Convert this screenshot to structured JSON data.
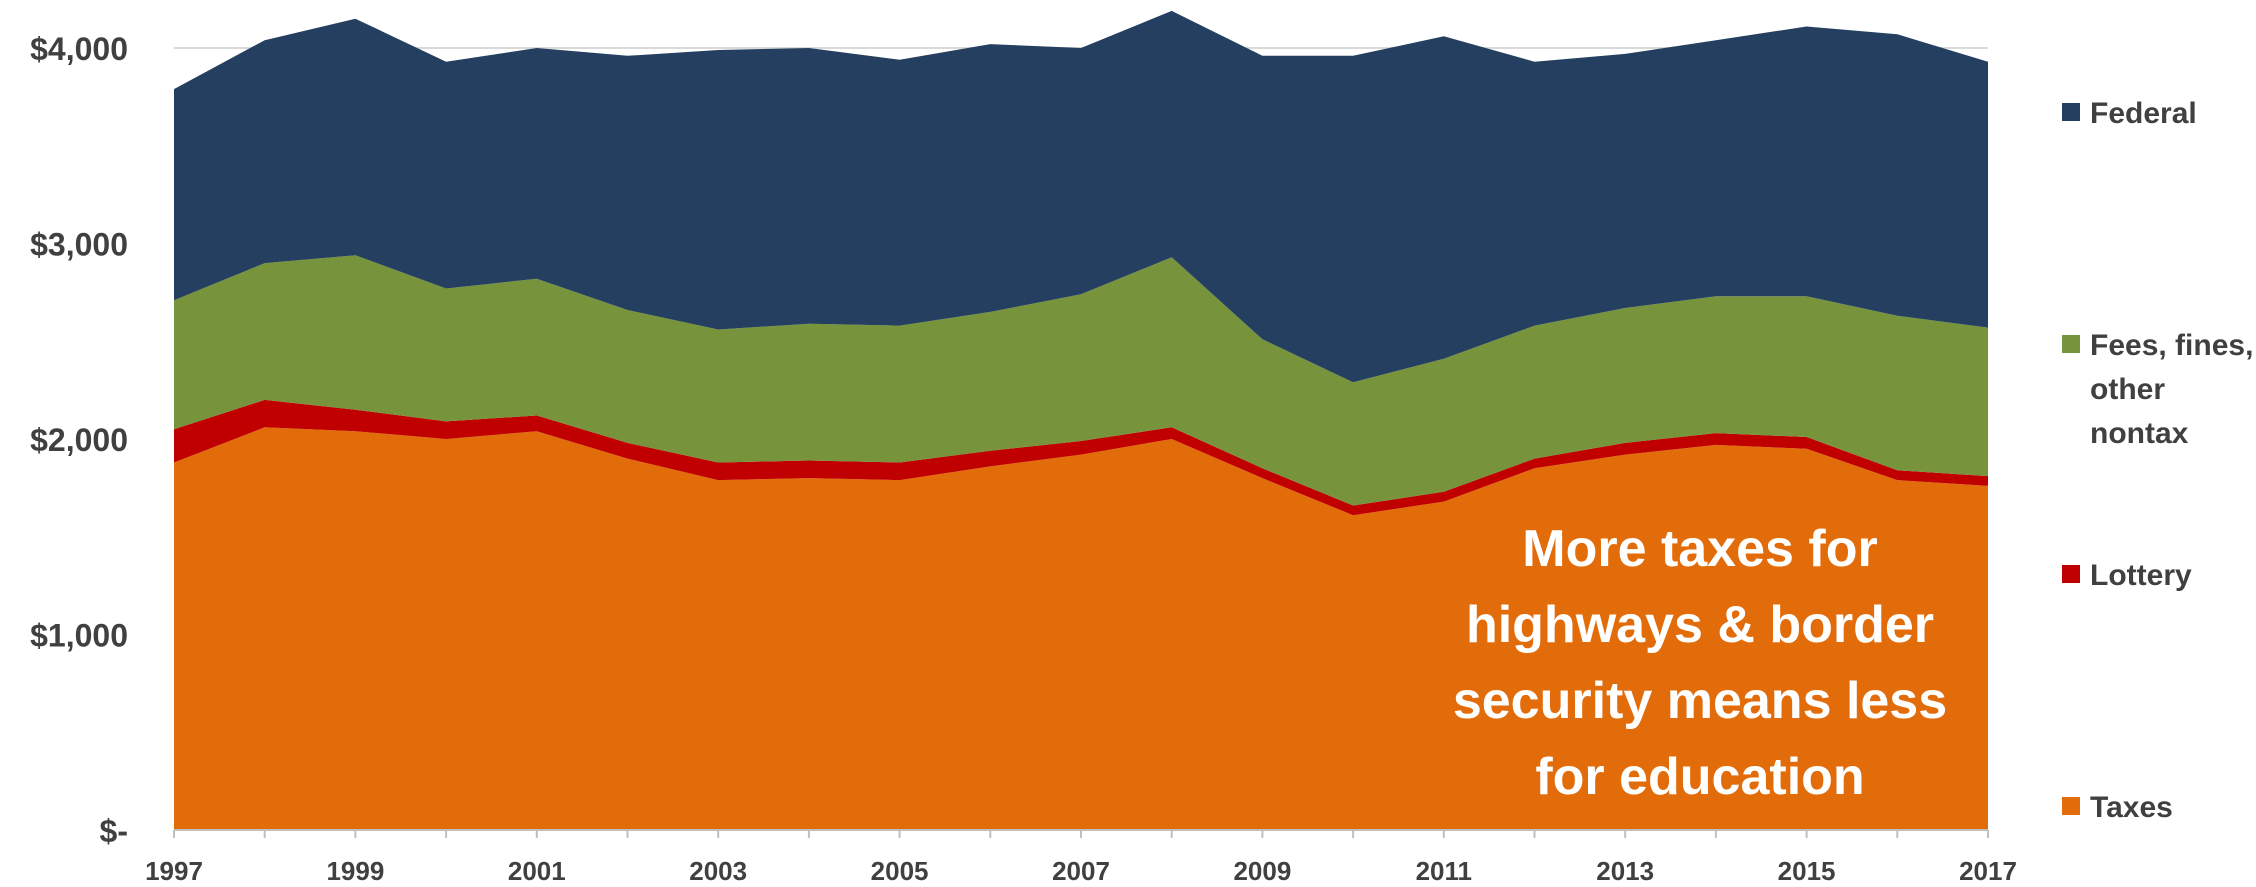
{
  "chart_data": {
    "type": "area",
    "stacked": true,
    "x": [
      1997,
      1998,
      1999,
      2000,
      2001,
      2002,
      2003,
      2004,
      2005,
      2006,
      2007,
      2008,
      2009,
      2010,
      2011,
      2012,
      2013,
      2014,
      2015,
      2016,
      2017
    ],
    "x_tick_labels": [
      "1997",
      "1999",
      "2001",
      "2003",
      "2005",
      "2007",
      "2009",
      "2011",
      "2013",
      "2015",
      "2017"
    ],
    "x_tick_values": [
      1997,
      1999,
      2001,
      2003,
      2005,
      2007,
      2009,
      2011,
      2013,
      2015,
      2017
    ],
    "y_tick_labels": [
      "$-",
      "$1,000",
      "$2,000",
      "$3,000",
      "$4,000"
    ],
    "y_tick_values": [
      0,
      1000,
      2000,
      3000,
      4000
    ],
    "ylim": [
      0,
      4000
    ],
    "series": [
      {
        "name": "Taxes",
        "color": "#e36c0a",
        "values": [
          1880,
          2060,
          2040,
          2000,
          2040,
          1900,
          1790,
          1800,
          1790,
          1860,
          1920,
          2000,
          1800,
          1610,
          1680,
          1850,
          1920,
          1970,
          1950,
          1790,
          1760
        ]
      },
      {
        "name": "Lottery",
        "color": "#c00000",
        "values": [
          170,
          140,
          110,
          90,
          80,
          80,
          90,
          90,
          90,
          80,
          70,
          60,
          50,
          50,
          50,
          50,
          60,
          60,
          60,
          50,
          50
        ]
      },
      {
        "name": "Fees, fines, other nontax",
        "color": "#77933c",
        "values": [
          660,
          700,
          790,
          680,
          700,
          680,
          680,
          700,
          700,
          710,
          750,
          870,
          660,
          630,
          680,
          680,
          690,
          700,
          720,
          790,
          760
        ]
      },
      {
        "name": "Federal",
        "color": "#243f60",
        "values": [
          1080,
          1140,
          1210,
          1160,
          1180,
          1300,
          1430,
          1410,
          1360,
          1370,
          1260,
          1260,
          1450,
          1670,
          1650,
          1350,
          1300,
          1310,
          1380,
          1440,
          1360
        ]
      }
    ],
    "legend": {
      "placement": "right",
      "entries": [
        "Federal",
        "Fees, fines, other nontax",
        "Lottery",
        "Taxes"
      ]
    },
    "annotation": [
      "More taxes for",
      "highways & border",
      "security means less",
      "for education"
    ],
    "grid": true
  }
}
